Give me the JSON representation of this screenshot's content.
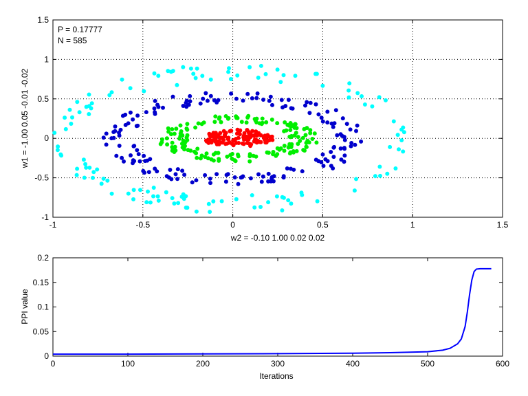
{
  "chart_data": [
    {
      "type": "scatter",
      "xlabel": "w2 = -0.10  1.00  0.02  0.02",
      "ylabel": "w1 = -1.00  0.05  -0.01  -0.02",
      "xlim": [
        -1,
        1.5
      ],
      "ylim": [
        -1,
        1.5
      ],
      "xticks": [
        "-1",
        "-0.5",
        "0",
        "0.5",
        "1",
        "1.5"
      ],
      "yticks": [
        "-1",
        "-0.5",
        "0",
        "0.5",
        "1",
        "1.5"
      ],
      "grid": true,
      "annotations": [
        "P = 0.17777",
        "N = 585"
      ],
      "series": [
        {
          "color": "#00ffff",
          "shape": "ellipse-ring",
          "center": [
            0,
            0
          ],
          "radius_x": [
            0.88,
            1.0
          ],
          "radius_y": [
            0.72,
            0.95
          ],
          "count": 130
        },
        {
          "color": "#0000cc",
          "shape": "ellipse-ring",
          "center": [
            0,
            0
          ],
          "radius_x": [
            0.56,
            0.72
          ],
          "radius_y": [
            0.45,
            0.6
          ],
          "count": 170
        },
        {
          "color": "#00ee00",
          "shape": "ellipse-ring",
          "center": [
            0.03,
            0
          ],
          "radius_x": [
            0.28,
            0.45
          ],
          "radius_y": [
            0.2,
            0.3
          ],
          "count": 160
        },
        {
          "color": "#ff0000",
          "shape": "ellipse-blob",
          "center": [
            0.03,
            0.0
          ],
          "radius_x": [
            0,
            0.2
          ],
          "radius_y": [
            0,
            0.11
          ],
          "count": 125
        }
      ]
    },
    {
      "type": "line",
      "xlabel": "Iterations",
      "ylabel": "PPI value",
      "xlim": [
        0,
        600
      ],
      "ylim": [
        0,
        0.2
      ],
      "xticks": [
        "0",
        "100",
        "200",
        "300",
        "400",
        "500",
        "600"
      ],
      "yticks": [
        "0",
        "0.05",
        "0.1",
        "0.15",
        "0.2"
      ],
      "grid": false,
      "series": [
        {
          "color": "#0000ff",
          "x": [
            0,
            100,
            200,
            300,
            400,
            450,
            500,
            520,
            530,
            540,
            545,
            550,
            553,
            556,
            559,
            562,
            565,
            570,
            575,
            585
          ],
          "y": [
            0.004,
            0.004,
            0.0045,
            0.005,
            0.006,
            0.007,
            0.009,
            0.012,
            0.016,
            0.025,
            0.035,
            0.06,
            0.09,
            0.125,
            0.155,
            0.172,
            0.177,
            0.1778,
            0.1778,
            0.1778
          ]
        }
      ]
    }
  ]
}
